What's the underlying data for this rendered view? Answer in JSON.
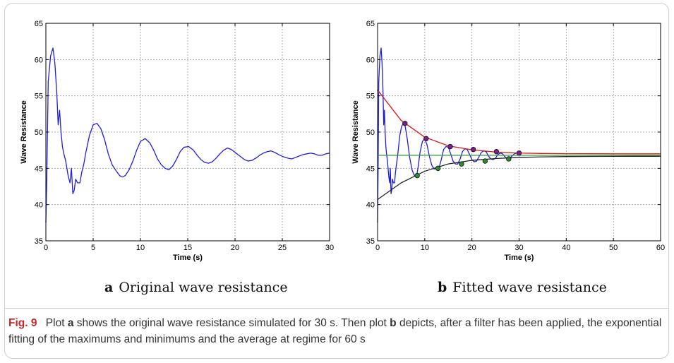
{
  "chart_data": [
    {
      "id": "a",
      "type": "line",
      "xlabel": "Time (s)",
      "ylabel": "Wave Resistance",
      "xlim": [
        0,
        30
      ],
      "ylim": [
        35,
        65
      ],
      "xticks": [
        "0",
        "5",
        "10",
        "15",
        "20",
        "25",
        "30"
      ],
      "yticks": [
        "35",
        "40",
        "45",
        "50",
        "55",
        "60",
        "65"
      ],
      "grid": true,
      "series": [
        {
          "color": "#1f1fdd",
          "x": [
            0,
            0.1,
            0.25,
            0.5,
            0.75,
            0.95,
            1.15,
            1.3,
            1.45,
            1.6,
            1.75,
            1.9,
            2.1,
            2.35,
            2.55,
            2.7,
            2.85,
            3.0,
            3.15,
            3.35,
            3.6,
            3.8,
            4.0,
            4.2,
            4.6,
            5.0,
            5.4,
            5.8,
            6.2,
            6.6,
            7.0,
            7.4,
            7.8,
            8.1,
            8.4,
            8.8,
            9.2,
            9.6,
            10.0,
            10.5,
            11.0,
            11.4,
            11.8,
            12.2,
            12.6,
            13.0,
            13.4,
            13.8,
            14.2,
            14.6,
            15.1,
            15.6,
            16.0,
            16.4,
            16.8,
            17.2,
            17.6,
            18.0,
            18.4,
            18.8,
            19.2,
            19.6,
            20.1,
            20.6,
            21.0,
            21.4,
            21.8,
            22.2,
            22.6,
            23.0,
            23.4,
            23.8,
            24.2,
            24.6,
            25.1,
            25.6,
            26.0,
            26.4,
            26.8,
            27.2,
            27.6,
            28.0,
            28.4,
            28.8,
            29.2,
            29.6,
            30.0
          ],
          "y": [
            37.5,
            44,
            57,
            60.5,
            61.6,
            59.5,
            55.5,
            51,
            53,
            50,
            48,
            47,
            46,
            44,
            43,
            45,
            41.5,
            42,
            43.5,
            43,
            43,
            44.5,
            45.5,
            47,
            49.5,
            51,
            51.2,
            50.5,
            49,
            47,
            45.5,
            44.7,
            44,
            43.8,
            44,
            44.8,
            46,
            47.5,
            48.7,
            49.1,
            48.5,
            47.5,
            46.3,
            45.5,
            45,
            44.8,
            45.3,
            46.2,
            47.3,
            47.9,
            48.0,
            47.5,
            46.8,
            46.2,
            45.8,
            45.7,
            45.9,
            46.4,
            47.0,
            47.5,
            47.8,
            47.6,
            47.1,
            46.6,
            46.2,
            46.0,
            46.1,
            46.4,
            46.8,
            47.1,
            47.3,
            47.4,
            47.2,
            46.9,
            46.6,
            46.4,
            46.3,
            46.5,
            46.7,
            46.9,
            47.0,
            47.1,
            47.0,
            46.8,
            46.8,
            47.0,
            47.1
          ]
        }
      ]
    },
    {
      "id": "b",
      "type": "line",
      "xlabel": "Time (s)",
      "ylabel": "Wave Resistance",
      "xlim": [
        0,
        60
      ],
      "ylim": [
        35,
        65
      ],
      "xticks": [
        "0",
        "10",
        "20",
        "30",
        "40",
        "50",
        "60"
      ],
      "yticks": [
        "35",
        "40",
        "45",
        "50",
        "55",
        "60",
        "65"
      ],
      "grid": true,
      "series": [
        {
          "color": "#1f1fdd",
          "x": [
            0,
            0.1,
            0.25,
            0.5,
            0.75,
            0.95,
            1.15,
            1.3,
            1.45,
            1.6,
            1.75,
            1.9,
            2.1,
            2.35,
            2.55,
            2.7,
            2.85,
            3.0,
            3.15,
            3.35,
            3.6,
            3.8,
            4.0,
            4.3,
            4.7,
            5.1,
            5.5,
            5.8,
            6.3,
            6.8,
            7.3,
            7.8,
            8.3,
            8.6,
            9.0,
            9.5,
            10.0,
            10.5,
            11.0,
            11.5,
            12.0,
            12.5,
            13.0,
            13.5,
            14.0,
            14.5,
            15.0,
            15.5,
            16.0,
            16.5,
            17.0,
            17.5,
            18.0,
            18.5,
            19.0,
            19.5,
            20.0,
            20.5,
            21.0,
            21.5,
            22.0,
            22.5,
            23.0,
            23.5,
            24.0,
            24.5,
            25.0,
            25.5,
            26.0,
            26.5,
            27.0,
            27.5,
            28.0,
            28.5,
            29.0,
            29.5,
            30.0
          ],
          "y": [
            37.5,
            44,
            57,
            60.5,
            61.6,
            59.5,
            55.5,
            51,
            53,
            50,
            48,
            47,
            46,
            44,
            43,
            45,
            41.5,
            42,
            43.5,
            43,
            43,
            44.5,
            45.5,
            47,
            49.5,
            50.8,
            51.2,
            51.0,
            49.0,
            46.5,
            44.8,
            44.0,
            44.0,
            45.2,
            47.2,
            48.7,
            49.1,
            48.2,
            46.6,
            45.4,
            44.9,
            45.1,
            45.0,
            46.2,
            47.6,
            48.0,
            47.9,
            47.0,
            46.0,
            45.6,
            45.6,
            46.3,
            47.3,
            47.7,
            47.6,
            46.9,
            46.2,
            45.9,
            46.0,
            46.6,
            47.2,
            47.4,
            47.3,
            46.7,
            46.3,
            46.2,
            46.4,
            46.9,
            47.1,
            47.0,
            46.6,
            46.3,
            46.4,
            46.7,
            47.0,
            47.1,
            47.0
          ]
        },
        {
          "color": "#e01515",
          "x": [
            0,
            5,
            10,
            15,
            20,
            25,
            30,
            35,
            40,
            45,
            50,
            55,
            60
          ],
          "y": [
            55.8,
            51.6,
            49.3,
            48.1,
            47.55,
            47.25,
            47.1,
            47.05,
            47.02,
            47.01,
            47.0,
            47.0,
            47.0
          ]
        },
        {
          "color": "#222222",
          "x": [
            0,
            5,
            10,
            15,
            20,
            25,
            30,
            35,
            40,
            45,
            50,
            55,
            60
          ],
          "y": [
            40.7,
            43.0,
            44.6,
            45.6,
            46.1,
            46.35,
            46.5,
            46.58,
            46.62,
            46.64,
            46.65,
            46.66,
            46.66
          ]
        },
        {
          "color": "#2e9a2e",
          "x": [
            0,
            60
          ],
          "y": [
            46.8,
            46.8
          ]
        }
      ],
      "maxima_points": {
        "color": "#7b1f8c",
        "x": [
          5.8,
          10.3,
          15.4,
          20.3,
          25.2,
          30.0
        ],
        "y": [
          51.2,
          49.1,
          48.0,
          47.6,
          47.3,
          47.1
        ]
      },
      "minima_points": {
        "color": "#2e8b2e",
        "x": [
          8.4,
          12.8,
          17.8,
          22.8,
          27.8
        ],
        "y": [
          44.0,
          45.0,
          45.6,
          46.0,
          46.3
        ]
      }
    }
  ],
  "subcaptions": {
    "a": {
      "letter": "a",
      "text": "Original wave resistance"
    },
    "b": {
      "letter": "b",
      "text": "Fitted wave resistance"
    }
  },
  "caption": {
    "fig_label": "Fig. 9",
    "t1": " Plot ",
    "b1": "a",
    "t2": " shows the original wave resistance simulated for 30 s. Then plot ",
    "b2": "b",
    "t3": " depicts, after a filter has been applied, the exponential fitting of the maximums and minimums and the average at regime for 60 s"
  }
}
